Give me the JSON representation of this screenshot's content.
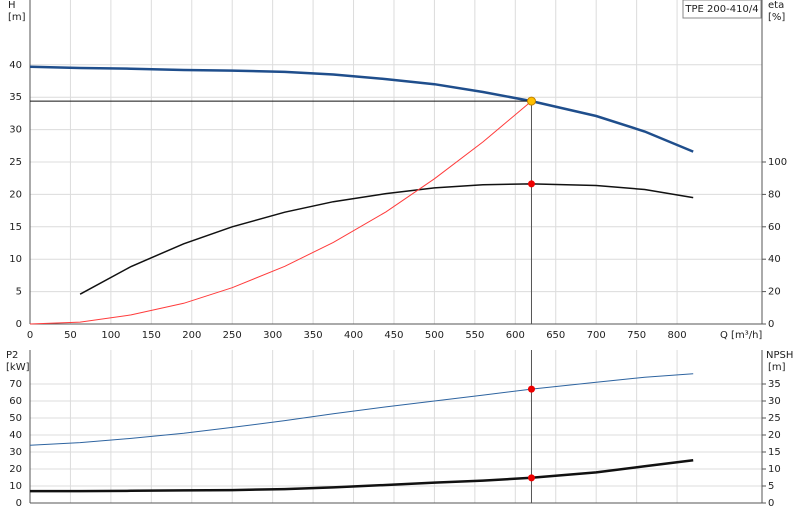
{
  "chart_data": [
    {
      "type": "line",
      "title": "TPE 200-410/4",
      "y_label": "H",
      "y_unit": "[m]",
      "y2_label": "eta",
      "y2_unit": "[%]",
      "x_label": "Q [m³/h]",
      "x": [
        0,
        62,
        125,
        190,
        250,
        315,
        375,
        440,
        500,
        560,
        620,
        700,
        760,
        820
      ],
      "xlim": [
        0,
        905
      ],
      "xticks": [
        0,
        50,
        100,
        150,
        200,
        250,
        300,
        350,
        400,
        450,
        500,
        550,
        600,
        650,
        700,
        750,
        800
      ],
      "ylim": [
        0,
        50
      ],
      "yticks": [
        0,
        5,
        10,
        15,
        20,
        25,
        30,
        35,
        40
      ],
      "y2lim": [
        0,
        200
      ],
      "y2ticks": [
        0,
        20,
        40,
        60,
        80,
        100
      ],
      "grid": true,
      "series": [
        {
          "color": "#1f4e8c",
          "width": 2.5,
          "values": [
            39.7,
            39.5,
            39.4,
            39.2,
            39.1,
            38.9,
            38.5,
            37.8,
            37.0,
            35.8,
            34.4,
            32.1,
            29.7,
            26.6
          ]
        },
        {
          "color": "#111111",
          "width": 1.5,
          "axis": "y2",
          "values": [
            null,
            18.4,
            35.5,
            49.5,
            60,
            69,
            75.5,
            80.5,
            84,
            86,
            86.5,
            85.5,
            83,
            78
          ]
        },
        {
          "color": "#ff3b3b",
          "width": 1,
          "values": [
            0,
            0.3,
            1.4,
            3.2,
            5.6,
            8.9,
            12.6,
            17.3,
            22.4,
            28.1,
            34.4,
            null,
            null,
            null
          ]
        }
      ],
      "duty_point": {
        "q": 620,
        "h": 34.4,
        "eta": 86.5
      }
    },
    {
      "type": "line",
      "y_label": "P2",
      "y_unit": "[kW]",
      "y2_label": "NPSH",
      "y2_unit": "[m]",
      "x": [
        0,
        62,
        125,
        190,
        250,
        315,
        375,
        440,
        500,
        560,
        620,
        700,
        760,
        820
      ],
      "xlim": [
        0,
        905
      ],
      "ylim": [
        0,
        90
      ],
      "yticks": [
        0,
        10,
        20,
        30,
        40,
        50,
        60,
        70
      ],
      "y2lim": [
        0,
        45
      ],
      "y2ticks": [
        0,
        5,
        10,
        15,
        20,
        25,
        30,
        35
      ],
      "grid": true,
      "series": [
        {
          "color": "#2e64a0",
          "width": 1,
          "values": [
            34,
            35.5,
            38,
            41,
            44.5,
            48.5,
            52.5,
            56.5,
            60,
            63.5,
            67,
            71,
            74,
            76
          ]
        },
        {
          "color": "#111111",
          "width": 2.5,
          "axis": "y2",
          "values": [
            3.5,
            3.5,
            3.6,
            3.7,
            3.8,
            4.1,
            4.6,
            5.3,
            6.0,
            6.6,
            7.4,
            9.0,
            10.8,
            12.6
          ]
        }
      ],
      "duty_point": {
        "p2": 67,
        "npsh": 7.4
      }
    }
  ]
}
